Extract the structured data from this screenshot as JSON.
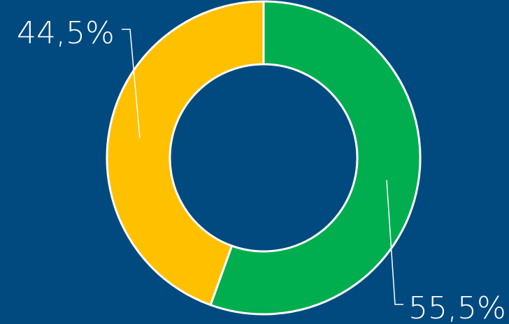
{
  "chart_data": {
    "type": "pie",
    "style": "donut",
    "slices": [
      {
        "label": "55,5%",
        "value": 55.5,
        "color": "#00ae4f"
      },
      {
        "label": "44,5%",
        "value": 44.5,
        "color": "#ffc000"
      }
    ],
    "colors": {
      "background": "#004a80",
      "separator": "#ffffff",
      "label_text": "#ffffff",
      "leader_line": "#ffffff"
    },
    "title": "",
    "legend": "none"
  }
}
